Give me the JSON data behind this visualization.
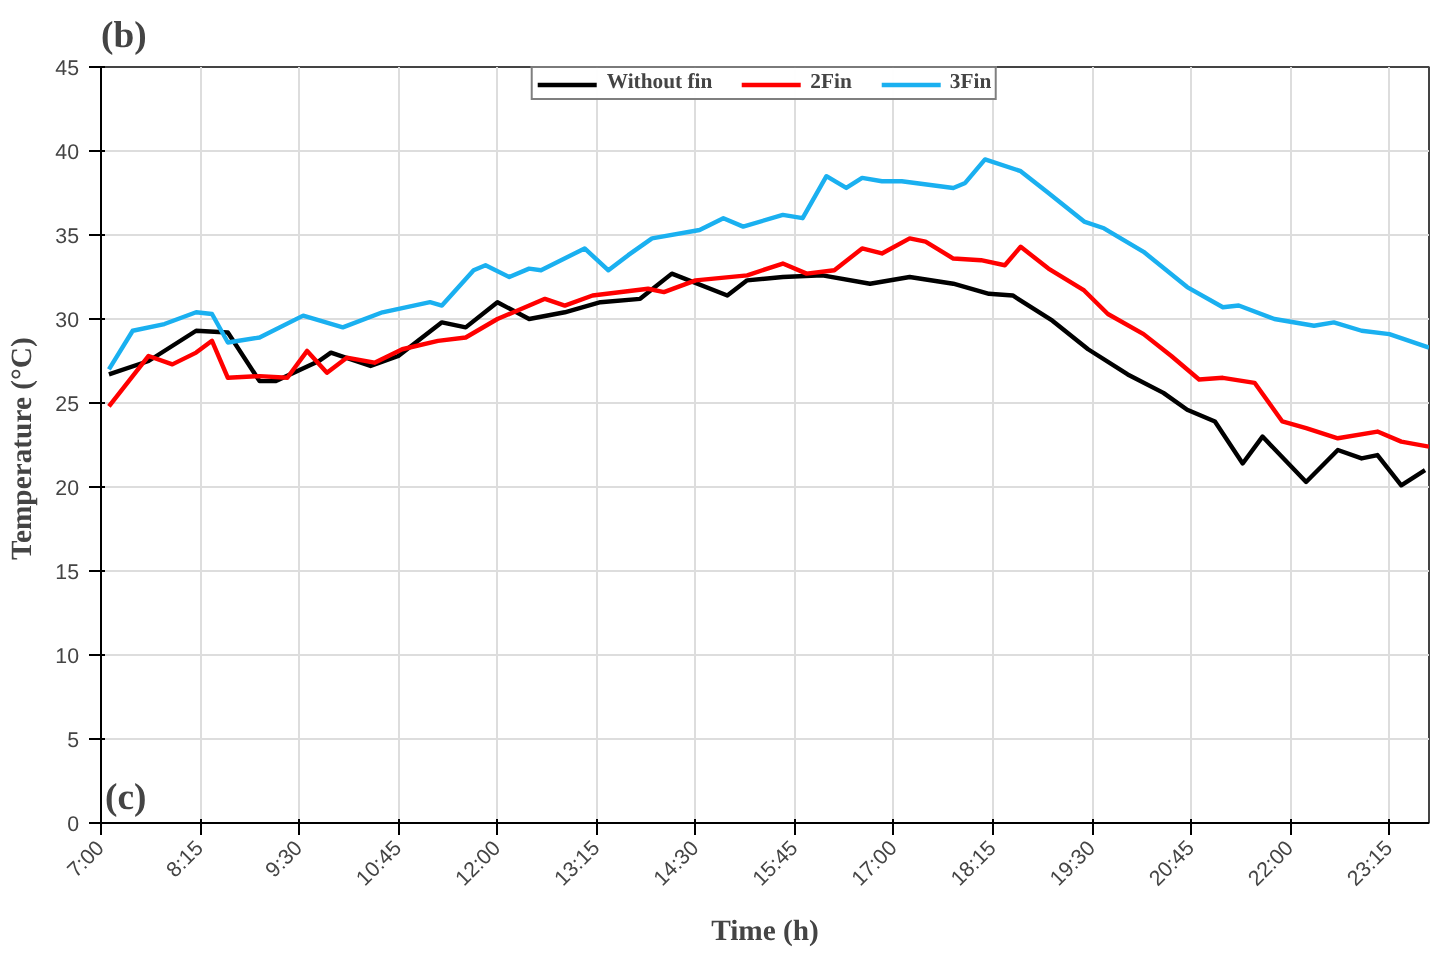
{
  "chart_data": {
    "type": "line",
    "title": "(b)",
    "xlabel": "Time (h)",
    "ylabel": "Temperature  (°C)",
    "xlim": [
      7,
      23.75
    ],
    "ylim": [
      0,
      45
    ],
    "xticks": [
      {
        "value": 7,
        "label": "7:00"
      },
      {
        "value": 8.25,
        "label": "8:15"
      },
      {
        "value": 9.5,
        "label": "9:30"
      },
      {
        "value": 10.75,
        "label": "10:45"
      },
      {
        "value": 12,
        "label": "12:00"
      },
      {
        "value": 13.25,
        "label": "13:15"
      },
      {
        "value": 14.5,
        "label": "14:30"
      },
      {
        "value": 15.75,
        "label": "15:45"
      },
      {
        "value": 17,
        "label": "17:00"
      },
      {
        "value": 18.25,
        "label": "18:15"
      },
      {
        "value": 19.5,
        "label": "19:30"
      },
      {
        "value": 20.75,
        "label": "20:45"
      },
      {
        "value": 22,
        "label": "22:00"
      },
      {
        "value": 23.25,
        "label": "23:15"
      }
    ],
    "yticks": [
      0,
      5,
      10,
      15,
      20,
      25,
      30,
      35,
      40,
      45
    ],
    "grid": true,
    "legend": "top",
    "marker": "none",
    "line_style": "solid",
    "annotations": [
      "(c)"
    ],
    "series": [
      {
        "name": "Without fin",
        "color": "#000000",
        "x": [
          7.1,
          7.6,
          8.2,
          8.6,
          9.0,
          9.2,
          9.75,
          9.9,
          10.4,
          10.75,
          11.3,
          11.6,
          12.0,
          12.4,
          12.85,
          13.3,
          13.8,
          14.2,
          14.9,
          15.15,
          15.6,
          16.1,
          16.7,
          17.2,
          17.75,
          18.2,
          18.5,
          19.0,
          19.45,
          19.95,
          20.4,
          20.7,
          21.05,
          21.4,
          21.65,
          22.2,
          22.6,
          22.9,
          23.1,
          23.4,
          23.7
        ],
        "values": [
          26.7,
          27.5,
          29.3,
          29.2,
          26.3,
          26.3,
          27.5,
          28.0,
          27.2,
          27.8,
          29.8,
          29.5,
          31.0,
          30.0,
          30.4,
          31.0,
          31.2,
          32.7,
          31.4,
          32.3,
          32.5,
          32.6,
          32.1,
          32.5,
          32.1,
          31.5,
          31.4,
          29.9,
          28.2,
          26.7,
          25.6,
          24.6,
          23.9,
          21.4,
          23.0,
          20.3,
          22.2,
          21.7,
          21.9,
          20.1,
          21.0
        ]
      },
      {
        "name": "2Fin",
        "color": "#ff0000",
        "x": [
          7.1,
          7.6,
          7.9,
          8.2,
          8.4,
          8.6,
          9.0,
          9.35,
          9.6,
          9.85,
          10.1,
          10.45,
          10.8,
          11.25,
          11.6,
          12.0,
          12.6,
          12.85,
          13.2,
          13.9,
          14.1,
          14.5,
          15.15,
          15.6,
          15.9,
          16.25,
          16.6,
          16.85,
          17.2,
          17.4,
          17.75,
          18.1,
          18.4,
          18.6,
          18.95,
          19.4,
          19.7,
          20.15,
          20.5,
          20.85,
          21.15,
          21.55,
          21.9,
          22.2,
          22.6,
          23.1,
          23.4,
          23.75
        ],
        "values": [
          24.8,
          27.8,
          27.3,
          28.0,
          28.7,
          26.5,
          26.6,
          26.5,
          28.1,
          26.8,
          27.7,
          27.4,
          28.2,
          28.7,
          28.9,
          30.0,
          31.2,
          30.8,
          31.4,
          31.8,
          31.6,
          32.3,
          32.6,
          33.3,
          32.7,
          32.9,
          34.2,
          33.9,
          34.8,
          34.6,
          33.6,
          33.5,
          33.2,
          34.3,
          33.0,
          31.7,
          30.3,
          29.1,
          27.8,
          26.4,
          26.5,
          26.2,
          23.9,
          23.5,
          22.9,
          23.3,
          22.7,
          22.4
        ]
      },
      {
        "name": "3Fin",
        "color": "#1ab0f0",
        "x": [
          7.1,
          7.4,
          7.8,
          8.2,
          8.4,
          8.6,
          9.0,
          9.55,
          10.05,
          10.55,
          11.15,
          11.3,
          11.7,
          11.85,
          12.15,
          12.4,
          12.55,
          13.1,
          13.4,
          13.65,
          13.95,
          14.55,
          14.85,
          15.1,
          15.6,
          15.85,
          16.15,
          16.4,
          16.6,
          16.85,
          17.1,
          17.75,
          17.9,
          18.15,
          18.6,
          18.95,
          19.4,
          19.65,
          20.15,
          20.7,
          21.15,
          21.35,
          21.8,
          22.3,
          22.55,
          22.9,
          23.25,
          23.75
        ],
        "values": [
          27.0,
          29.3,
          29.7,
          30.4,
          30.3,
          28.6,
          28.9,
          30.2,
          29.5,
          30.4,
          31.0,
          30.8,
          32.9,
          33.2,
          32.5,
          33.0,
          32.9,
          34.2,
          32.9,
          33.8,
          34.8,
          35.3,
          36.0,
          35.5,
          36.2,
          36.0,
          38.5,
          37.8,
          38.4,
          38.2,
          38.2,
          37.8,
          38.1,
          39.5,
          38.8,
          37.5,
          35.8,
          35.4,
          34.0,
          31.9,
          30.7,
          30.8,
          30.0,
          29.6,
          29.8,
          29.3,
          29.1,
          28.3
        ]
      }
    ]
  }
}
